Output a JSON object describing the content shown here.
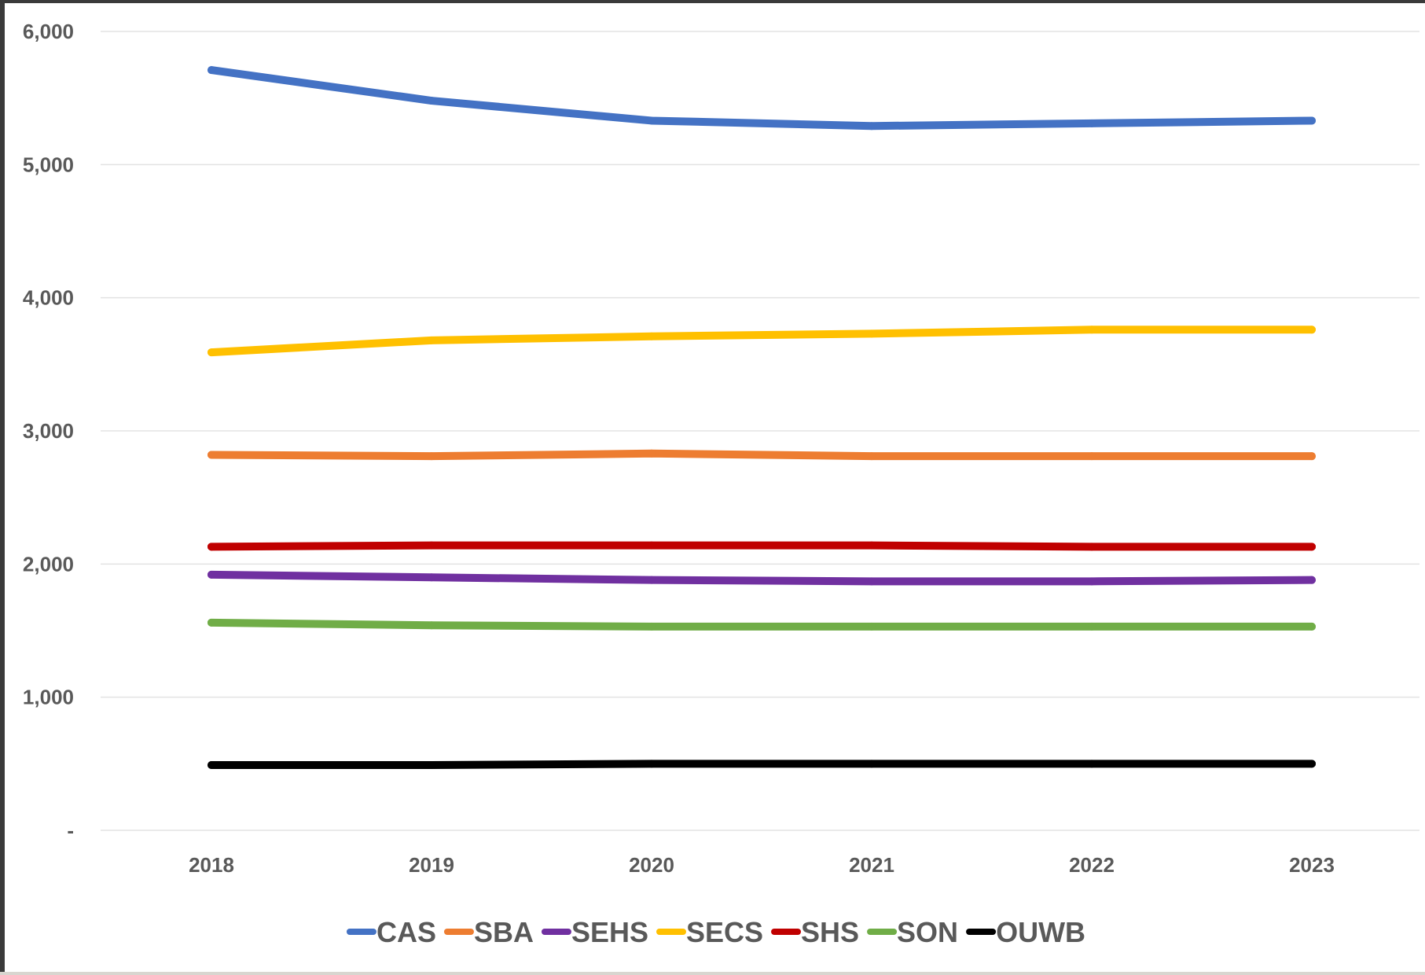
{
  "chart_data": {
    "type": "line",
    "title": "",
    "xlabel": "",
    "ylabel": "",
    "x": [
      "2018",
      "2019",
      "2020",
      "2021",
      "2022",
      "2023"
    ],
    "ylim": [
      0,
      6000
    ],
    "yticks": [
      0,
      1000,
      2000,
      3000,
      4000,
      5000,
      6000
    ],
    "ytick_labels": [
      "-",
      "1,000",
      "2,000",
      "3,000",
      "4,000",
      "5,000",
      "6,000"
    ],
    "grid": true,
    "legend_position": "bottom",
    "series": [
      {
        "name": "CAS",
        "color": "#4472C4",
        "values": [
          5710,
          5480,
          5330,
          5290,
          5310,
          5330
        ]
      },
      {
        "name": "SBA",
        "color": "#ED7D31",
        "values": [
          2820,
          2810,
          2830,
          2810,
          2810,
          2810
        ]
      },
      {
        "name": "SEHS",
        "color": "#7030A0",
        "values": [
          1920,
          1900,
          1880,
          1870,
          1870,
          1880
        ]
      },
      {
        "name": "SECS",
        "color": "#FFC000",
        "values": [
          3590,
          3680,
          3710,
          3730,
          3760,
          3760
        ]
      },
      {
        "name": "SHS",
        "color": "#C00000",
        "values": [
          2130,
          2140,
          2140,
          2140,
          2130,
          2130
        ]
      },
      {
        "name": "SON",
        "color": "#70AD47",
        "values": [
          1560,
          1540,
          1530,
          1530,
          1530,
          1530
        ]
      },
      {
        "name": "OUWB",
        "color": "#000000",
        "values": [
          490,
          490,
          500,
          500,
          500,
          500
        ]
      }
    ]
  }
}
